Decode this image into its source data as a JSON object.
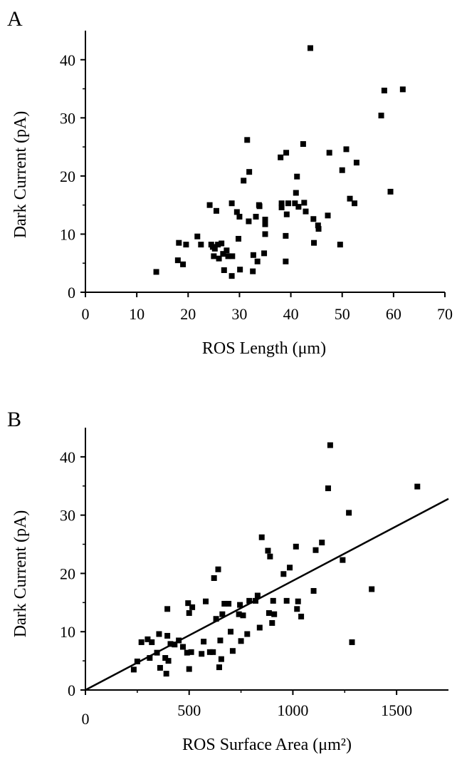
{
  "chart_data": [
    {
      "panel_label": "A",
      "type": "scatter",
      "xlabel": "ROS Length (μm)",
      "ylabel": "Dark Current (pA)",
      "xlim": [
        0,
        70
      ],
      "ylim": [
        0,
        45
      ],
      "xticks": [
        "0",
        "10",
        "20",
        "30",
        "40",
        "50",
        "60",
        "70"
      ],
      "yticks": [
        "0",
        "10",
        "20",
        "30",
        "40"
      ],
      "points": [
        [
          13.8,
          3.5
        ],
        [
          18,
          5.5
        ],
        [
          18.2,
          8.5
        ],
        [
          19,
          4.8
        ],
        [
          19.6,
          8.2
        ],
        [
          21.8,
          9.6
        ],
        [
          22.5,
          8.2
        ],
        [
          24.2,
          15
        ],
        [
          24.5,
          8.2
        ],
        [
          24.8,
          7.8
        ],
        [
          25,
          6.2
        ],
        [
          25.2,
          7.5
        ],
        [
          25.5,
          14
        ],
        [
          25.8,
          8.2
        ],
        [
          26,
          5.8
        ],
        [
          26.5,
          8.4
        ],
        [
          26.8,
          6.6
        ],
        [
          27,
          3.8
        ],
        [
          27.5,
          7.2
        ],
        [
          27.8,
          6.2
        ],
        [
          28.5,
          2.8
        ],
        [
          28.6,
          6.2
        ],
        [
          28.5,
          15.3
        ],
        [
          29.5,
          13.8
        ],
        [
          29.8,
          9.2
        ],
        [
          30,
          13
        ],
        [
          30.1,
          3.9
        ],
        [
          30.8,
          19.2
        ],
        [
          31.5,
          26.2
        ],
        [
          31.8,
          12.2
        ],
        [
          31.9,
          20.7
        ],
        [
          32.6,
          3.6
        ],
        [
          32.7,
          6.4
        ],
        [
          33.2,
          13
        ],
        [
          33.5,
          5.3
        ],
        [
          33.8,
          15
        ],
        [
          33.9,
          14.8
        ],
        [
          34.8,
          6.7
        ],
        [
          35,
          12.5
        ],
        [
          35,
          11.7
        ],
        [
          35,
          10
        ],
        [
          38,
          23.2
        ],
        [
          38.2,
          15.3
        ],
        [
          38.2,
          14.6
        ],
        [
          39.1,
          24
        ],
        [
          39,
          9.7
        ],
        [
          39,
          5.3
        ],
        [
          39.2,
          13.4
        ],
        [
          39.5,
          15.3
        ],
        [
          40.8,
          15.3
        ],
        [
          41,
          17.1
        ],
        [
          41.2,
          19.9
        ],
        [
          41.5,
          14.7
        ],
        [
          42.4,
          25.5
        ],
        [
          42.6,
          15.4
        ],
        [
          42.9,
          13.9
        ],
        [
          43.8,
          42
        ],
        [
          44.4,
          12.6
        ],
        [
          44.5,
          8.5
        ],
        [
          45.3,
          11.5
        ],
        [
          45.4,
          10.9
        ],
        [
          47.2,
          13.2
        ],
        [
          47.5,
          24
        ],
        [
          49.6,
          8.2
        ],
        [
          50,
          21
        ],
        [
          50.8,
          24.6
        ],
        [
          51.5,
          16.1
        ],
        [
          52.4,
          15.3
        ],
        [
          52.8,
          22.3
        ],
        [
          57.6,
          30.4
        ],
        [
          58.2,
          34.7
        ],
        [
          59.4,
          17.3
        ],
        [
          61.8,
          34.9
        ]
      ]
    },
    {
      "panel_label": "B",
      "type": "scatter",
      "xlabel": "ROS Surface Area (μm²)",
      "ylabel": "Dark Current (pA)",
      "xlim": [
        0,
        1750
      ],
      "ylim": [
        0,
        45
      ],
      "xticks": [
        "0",
        "500",
        "1000",
        "1500"
      ],
      "yticks": [
        "0",
        "10",
        "20",
        "30",
        "40"
      ],
      "fit_line": [
        [
          0,
          0
        ],
        [
          1750,
          32.8
        ]
      ],
      "points": [
        [
          233,
          3.5
        ],
        [
          250,
          4.9
        ],
        [
          270,
          8.2
        ],
        [
          300,
          8.7
        ],
        [
          310,
          5.5
        ],
        [
          320,
          8.2
        ],
        [
          345,
          6.4
        ],
        [
          355,
          9.6
        ],
        [
          360,
          3.8
        ],
        [
          385,
          5.5
        ],
        [
          390,
          2.8
        ],
        [
          395,
          13.9
        ],
        [
          395,
          9.3
        ],
        [
          400,
          5
        ],
        [
          410,
          7.9
        ],
        [
          430,
          7.8
        ],
        [
          450,
          8.5
        ],
        [
          470,
          7.4
        ],
        [
          490,
          6.4
        ],
        [
          495,
          14.9
        ],
        [
          500,
          3.6
        ],
        [
          500,
          13.2
        ],
        [
          510,
          6.5
        ],
        [
          515,
          14.2
        ],
        [
          560,
          6.2
        ],
        [
          570,
          8.3
        ],
        [
          580,
          15.2
        ],
        [
          600,
          6.5
        ],
        [
          615,
          6.5
        ],
        [
          620,
          19.2
        ],
        [
          630,
          12.2
        ],
        [
          640,
          20.7
        ],
        [
          645,
          3.9
        ],
        [
          650,
          8.5
        ],
        [
          655,
          5.3
        ],
        [
          660,
          13
        ],
        [
          670,
          14.8
        ],
        [
          690,
          14.8
        ],
        [
          700,
          10
        ],
        [
          710,
          6.7
        ],
        [
          740,
          13
        ],
        [
          745,
          14.6
        ],
        [
          750,
          8.4
        ],
        [
          760,
          12.8
        ],
        [
          780,
          9.6
        ],
        [
          790,
          15.3
        ],
        [
          820,
          15.3
        ],
        [
          830,
          16.2
        ],
        [
          840,
          10.7
        ],
        [
          850,
          26.2
        ],
        [
          880,
          23.9
        ],
        [
          885,
          13.2
        ],
        [
          890,
          22.9
        ],
        [
          900,
          11.5
        ],
        [
          905,
          15.3
        ],
        [
          910,
          13
        ],
        [
          955,
          19.9
        ],
        [
          970,
          15.3
        ],
        [
          985,
          21
        ],
        [
          1015,
          24.6
        ],
        [
          1020,
          13.9
        ],
        [
          1025,
          15.2
        ],
        [
          1040,
          12.6
        ],
        [
          1100,
          17
        ],
        [
          1110,
          24
        ],
        [
          1140,
          25.3
        ],
        [
          1170,
          34.6
        ],
        [
          1180,
          42
        ],
        [
          1270,
          30.4
        ],
        [
          1285,
          8.2
        ],
        [
          1240,
          22.3
        ],
        [
          1380,
          17.3
        ],
        [
          1600,
          34.9
        ]
      ]
    }
  ]
}
